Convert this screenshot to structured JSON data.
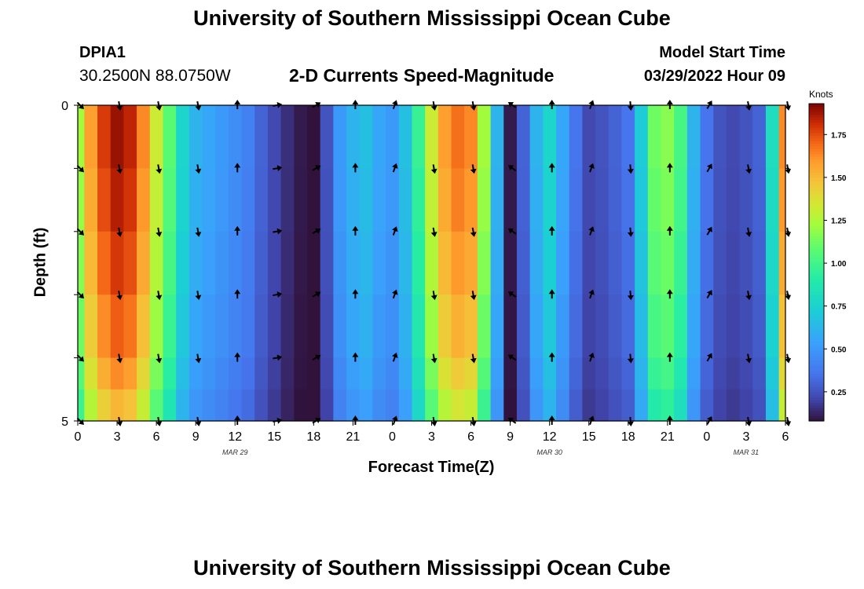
{
  "header": {
    "title": "University of Southern Mississippi Ocean Cube",
    "station": "DPIA1",
    "coords": "30.2500N  88.0750W",
    "subtitle": "2-D Currents Speed-Magnitude",
    "model_label": "Model Start Time",
    "model_time": "03/29/2022 Hour 09"
  },
  "footer": {
    "title": "University of Southern Mississippi Ocean Cube"
  },
  "chart_data": {
    "type": "heatmap",
    "title": "2-D Currents Speed-Magnitude",
    "xlabel": "Forecast Time(Z)",
    "ylabel": "Depth (ft)",
    "x_tick_labels": [
      "0",
      "3",
      "6",
      "9",
      "12",
      "15",
      "18",
      "21",
      "0",
      "3",
      "6",
      "9",
      "12",
      "15",
      "18",
      "21",
      "0",
      "3",
      "6"
    ],
    "x_hours": [
      0,
      3,
      6,
      9,
      12,
      15,
      18,
      21,
      24,
      27,
      30,
      33,
      36,
      39,
      42,
      45,
      48,
      51,
      54
    ],
    "date_labels": [
      {
        "label": "MAR 29",
        "hour": 12
      },
      {
        "label": "MAR 30",
        "hour": 36
      },
      {
        "label": "MAR 31",
        "hour": 51
      }
    ],
    "y_tick_labels": [
      "0",
      "5"
    ],
    "ylim": [
      0,
      5
    ],
    "xlim": [
      0,
      54
    ],
    "depth_rows_ft": [
      0.5,
      1.5,
      2.5,
      3.5,
      4.5,
      5.0
    ],
    "speed_knots_by_hour": [
      [
        0,
        1.2
      ],
      [
        1,
        1.55
      ],
      [
        2,
        1.75
      ],
      [
        3,
        1.85
      ],
      [
        4,
        1.8
      ],
      [
        5,
        1.6
      ],
      [
        6,
        1.3
      ],
      [
        7,
        1.05
      ],
      [
        8,
        0.75
      ],
      [
        9,
        0.6
      ],
      [
        10,
        0.55
      ],
      [
        11,
        0.5
      ],
      [
        12,
        0.45
      ],
      [
        13,
        0.4
      ],
      [
        14,
        0.3
      ],
      [
        15,
        0.22
      ],
      [
        16,
        0.15
      ],
      [
        17,
        0.1
      ],
      [
        18,
        0.05
      ],
      [
        19,
        0.25
      ],
      [
        20,
        0.5
      ],
      [
        21,
        0.6
      ],
      [
        22,
        0.65
      ],
      [
        23,
        0.55
      ],
      [
        24,
        0.5
      ],
      [
        25,
        0.65
      ],
      [
        26,
        0.95
      ],
      [
        27,
        1.3
      ],
      [
        28,
        1.55
      ],
      [
        29,
        1.65
      ],
      [
        30,
        1.6
      ],
      [
        31,
        1.2
      ],
      [
        32,
        0.6
      ],
      [
        33,
        0.1
      ],
      [
        34,
        0.3
      ],
      [
        35,
        0.6
      ],
      [
        36,
        0.75
      ],
      [
        37,
        0.55
      ],
      [
        38,
        0.35
      ],
      [
        39,
        0.22
      ],
      [
        40,
        0.25
      ],
      [
        41,
        0.3
      ],
      [
        42,
        0.35
      ],
      [
        43,
        0.7
      ],
      [
        44,
        1.1
      ],
      [
        45,
        1.15
      ],
      [
        46,
        1.0
      ],
      [
        47,
        0.6
      ],
      [
        48,
        0.35
      ],
      [
        49,
        0.25
      ],
      [
        50,
        0.22
      ],
      [
        51,
        0.25
      ],
      [
        52,
        0.3
      ],
      [
        53,
        0.8
      ],
      [
        54,
        1.6
      ]
    ],
    "vector_direction_deg_by_hour": [
      [
        0,
        135
      ],
      [
        3,
        170
      ],
      [
        6,
        170
      ],
      [
        9,
        170
      ],
      [
        12,
        0
      ],
      [
        15,
        80
      ],
      [
        18,
        60
      ],
      [
        21,
        0
      ],
      [
        24,
        20
      ],
      [
        27,
        170
      ],
      [
        30,
        170
      ],
      [
        33,
        305
      ],
      [
        36,
        0
      ],
      [
        39,
        20
      ],
      [
        42,
        175
      ],
      [
        45,
        0
      ],
      [
        48,
        30
      ],
      [
        51,
        170
      ],
      [
        54,
        170
      ]
    ],
    "colorbar": {
      "unit": "Knots",
      "tick_labels": [
        "0.25",
        "0.50",
        "0.75",
        "1.00",
        "1.25",
        "1.50",
        "1.75"
      ],
      "tick_values": [
        0.25,
        0.5,
        0.75,
        1.0,
        1.25,
        1.5,
        1.75
      ],
      "range": [
        0.08,
        1.93
      ]
    }
  }
}
